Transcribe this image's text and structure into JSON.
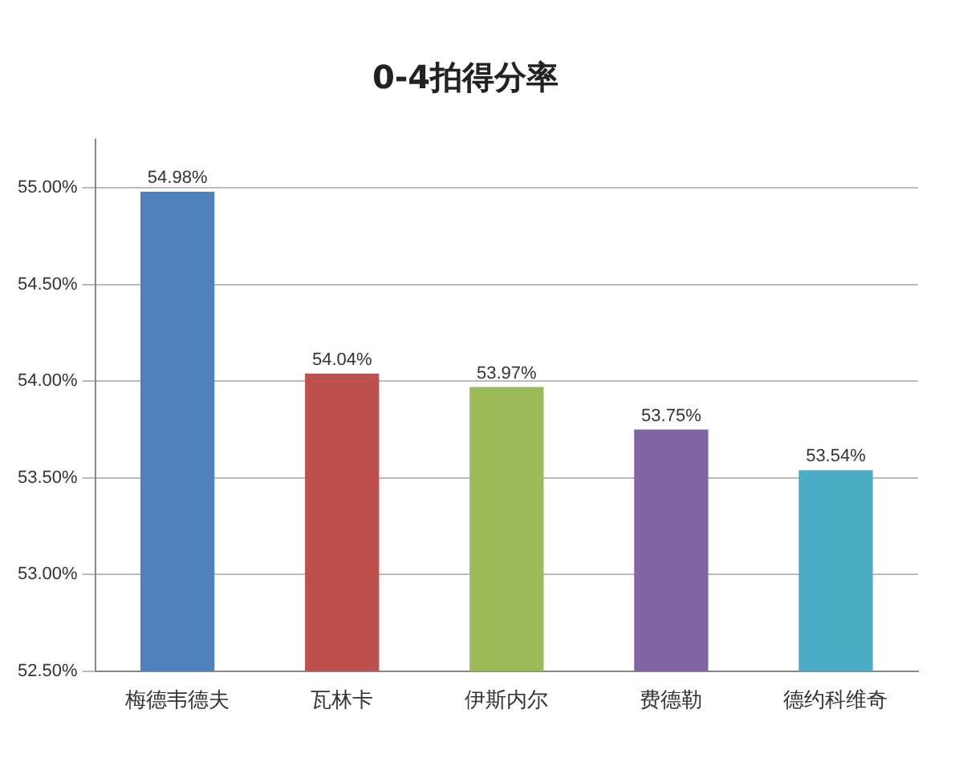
{
  "chart_data": {
    "type": "bar",
    "title": "0-4拍得分率",
    "categories": [
      "梅德韦德夫",
      "瓦林卡",
      "伊斯内尔",
      "费德勒",
      "德约科维奇"
    ],
    "values": [
      54.98,
      54.04,
      53.97,
      53.75,
      53.54
    ],
    "value_labels": [
      "54.98%",
      "54.04%",
      "53.97%",
      "53.75%",
      "53.54%"
    ],
    "colors": [
      "#4f81bd",
      "#c0504d",
      "#9bbb59",
      "#8064a2",
      "#4bacc6"
    ],
    "ylim": [
      52.5,
      55.25
    ],
    "yticks": [
      {
        "value": 52.5,
        "label": "52.50%"
      },
      {
        "value": 53,
        "label": "53.00%"
      },
      {
        "value": 53.5,
        "label": "53.50%"
      },
      {
        "value": 54,
        "label": "54.00%"
      },
      {
        "value": 54.5,
        "label": "54.50%"
      },
      {
        "value": 55,
        "label": "55.00%"
      }
    ],
    "grid": "y",
    "legend": false
  }
}
